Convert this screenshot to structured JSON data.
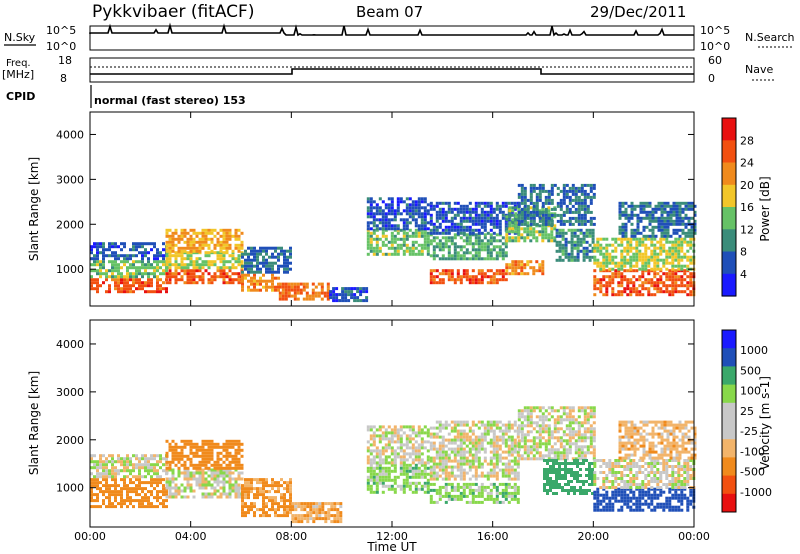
{
  "header": {
    "station": "Pykkvibaer (fitACF)",
    "beam": "Beam 07",
    "date": "29/Dec/2011"
  },
  "top_panels": {
    "nsky_label": "N.Sky",
    "nsky_top": "10^5",
    "nsky_bottom": "10^0",
    "nsearch_label": "N.Search",
    "nsearch_top": "10^5",
    "nsearch_bottom": "10^0",
    "freq_label": "Freq.",
    "freq_unit": "[MHz]",
    "freq_top": "18",
    "freq_bottom": "8",
    "nave_label": "Nave",
    "nave_top": "60",
    "nave_bottom": "0",
    "cpid_label": "CPID",
    "cpid_text": "normal (fast stereo) 153"
  },
  "colors": {
    "power_scale": [
      "#1a1aff",
      "#1f4fb8",
      "#3a8c7a",
      "#66c266",
      "#f2c629",
      "#f08a1c",
      "#f25010",
      "#e81010"
    ],
    "velocity_scale": [
      "#e81010",
      "#f25010",
      "#f08a1c",
      "#f2b46a",
      "#c8c8c8",
      "#c8c8c8",
      "#88d84a",
      "#3aa86a",
      "#1f4fb8",
      "#1a1aff"
    ]
  },
  "chart_data": [
    {
      "type": "heatmap",
      "name": "power",
      "ylabel": "Slant Range [km]",
      "ylim": [
        180,
        4500
      ],
      "yticks": [
        "1000",
        "2000",
        "3000",
        "4000"
      ],
      "xlim": [
        0,
        24
      ],
      "colorbar_label": "Power [dB]",
      "colorbar_ticks": [
        "4",
        "8",
        "12",
        "16",
        "20",
        "24",
        "28"
      ],
      "bands": [
        {
          "t0": 0.0,
          "t1": 3.0,
          "r0": 500,
          "r1": 800,
          "level": 28
        },
        {
          "t0": 0.0,
          "t1": 3.0,
          "r0": 800,
          "r1": 1200,
          "level": 16
        },
        {
          "t0": 0.0,
          "t1": 3.0,
          "r0": 1200,
          "r1": 1600,
          "level": 8
        },
        {
          "t0": 3.0,
          "t1": 6.0,
          "r0": 700,
          "r1": 1000,
          "level": 28
        },
        {
          "t0": 3.0,
          "t1": 6.0,
          "r0": 1000,
          "r1": 1400,
          "level": 18
        },
        {
          "t0": 3.0,
          "t1": 6.0,
          "r0": 1400,
          "r1": 1900,
          "level": 22
        },
        {
          "t0": 6.0,
          "t1": 7.5,
          "r0": 500,
          "r1": 900,
          "level": 24
        },
        {
          "t0": 6.0,
          "t1": 8.0,
          "r0": 900,
          "r1": 1500,
          "level": 10
        },
        {
          "t0": 7.5,
          "t1": 9.5,
          "r0": 300,
          "r1": 700,
          "level": 26
        },
        {
          "t0": 9.5,
          "t1": 11.0,
          "r0": 300,
          "r1": 600,
          "level": 8
        },
        {
          "t0": 11.0,
          "t1": 13.5,
          "r0": 1300,
          "r1": 1900,
          "level": 16
        },
        {
          "t0": 11.0,
          "t1": 13.5,
          "r0": 1900,
          "r1": 2600,
          "level": 8
        },
        {
          "t0": 13.5,
          "t1": 16.5,
          "r0": 700,
          "r1": 1000,
          "level": 28
        },
        {
          "t0": 13.5,
          "t1": 16.5,
          "r0": 1200,
          "r1": 1800,
          "level": 14
        },
        {
          "t0": 13.5,
          "t1": 17.0,
          "r0": 1800,
          "r1": 2500,
          "level": 8
        },
        {
          "t0": 16.5,
          "t1": 18.0,
          "r0": 900,
          "r1": 1200,
          "level": 24
        },
        {
          "t0": 16.5,
          "t1": 18.5,
          "r0": 1600,
          "r1": 2400,
          "level": 16
        },
        {
          "t0": 17.0,
          "t1": 20.0,
          "r0": 2000,
          "r1": 2900,
          "level": 10
        },
        {
          "t0": 18.5,
          "t1": 20.0,
          "r0": 1200,
          "r1": 1900,
          "level": 12
        },
        {
          "t0": 20.0,
          "t1": 24.0,
          "r0": 400,
          "r1": 1000,
          "level": 28
        },
        {
          "t0": 20.0,
          "t1": 24.0,
          "r0": 1000,
          "r1": 1700,
          "level": 18
        },
        {
          "t0": 21.0,
          "t1": 24.0,
          "r0": 1700,
          "r1": 2500,
          "level": 10
        }
      ]
    },
    {
      "type": "heatmap",
      "name": "velocity",
      "ylabel": "Slant Range [km]",
      "ylim": [
        180,
        4500
      ],
      "yticks": [
        "1000",
        "2000",
        "3000",
        "4000"
      ],
      "xlim": [
        0,
        24
      ],
      "xlabel": "Time UT",
      "xticks": [
        "00:00",
        "04:00",
        "08:00",
        "12:00",
        "16:00",
        "20:00",
        "00:00"
      ],
      "colorbar_label": "Velocity [m s-1]",
      "colorbar_ticks": [
        "1000",
        "500",
        "100",
        "25",
        "-25",
        "-100",
        "-500",
        "-1000"
      ],
      "bands": [
        {
          "t0": 0.0,
          "t1": 3.0,
          "r0": 600,
          "r1": 1200,
          "level": -300
        },
        {
          "t0": 0.0,
          "t1": 3.0,
          "r0": 1200,
          "r1": 1700,
          "level": 0
        },
        {
          "t0": 3.0,
          "t1": 6.0,
          "r0": 800,
          "r1": 1400,
          "level": 0
        },
        {
          "t0": 3.0,
          "t1": 6.0,
          "r0": 1400,
          "r1": 2000,
          "level": -200
        },
        {
          "t0": 6.0,
          "t1": 8.0,
          "r0": 400,
          "r1": 1200,
          "level": -120
        },
        {
          "t0": 8.0,
          "t1": 10.0,
          "r0": 300,
          "r1": 700,
          "level": -80
        },
        {
          "t0": 11.0,
          "t1": 13.5,
          "r0": 900,
          "r1": 1500,
          "level": 60
        },
        {
          "t0": 11.0,
          "t1": 13.5,
          "r0": 1500,
          "r1": 2300,
          "level": 0
        },
        {
          "t0": 13.5,
          "t1": 17.0,
          "r0": 700,
          "r1": 1100,
          "level": 60
        },
        {
          "t0": 13.5,
          "t1": 17.0,
          "r0": 1200,
          "r1": 2400,
          "level": 0
        },
        {
          "t0": 17.0,
          "t1": 20.0,
          "r0": 1600,
          "r1": 2700,
          "level": 0
        },
        {
          "t0": 18.0,
          "t1": 20.0,
          "r0": 900,
          "r1": 1600,
          "level": 300
        },
        {
          "t0": 20.0,
          "t1": 24.0,
          "r0": 500,
          "r1": 1000,
          "level": 800
        },
        {
          "t0": 20.0,
          "t1": 24.0,
          "r0": 1000,
          "r1": 1600,
          "level": 0
        },
        {
          "t0": 21.0,
          "t1": 24.0,
          "r0": 1600,
          "r1": 2400,
          "level": -60
        }
      ]
    }
  ]
}
